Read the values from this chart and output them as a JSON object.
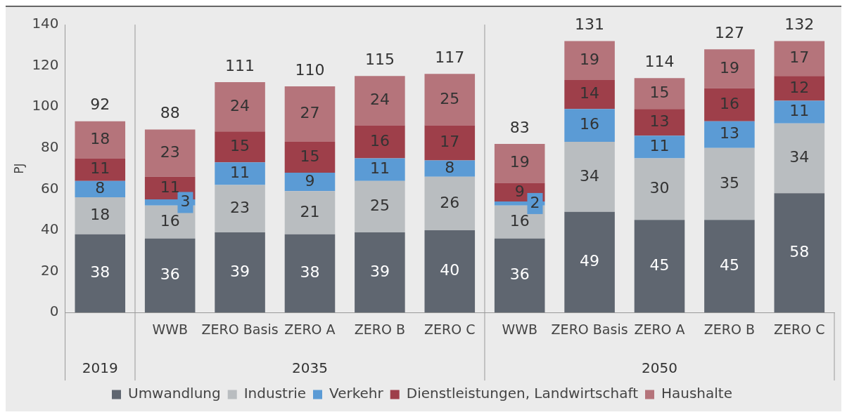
{
  "chart_data": {
    "type": "bar",
    "stacked": true,
    "ylabel": "PJ",
    "ylim": [
      0,
      140
    ],
    "yticks": [
      0,
      20,
      40,
      60,
      80,
      100,
      120,
      140
    ],
    "grid": false,
    "legend": "bottom",
    "data_labels": true,
    "categories": [
      null,
      "WWB",
      "ZERO Basis",
      "ZERO A",
      "ZERO B",
      "ZERO C",
      "WWB",
      "ZERO Basis",
      "ZERO A",
      "ZERO B",
      "ZERO C"
    ],
    "series": [
      {
        "name": "Umwandlung",
        "color": "#5f6670",
        "values": [
          38,
          36,
          39,
          38,
          39,
          40,
          36,
          49,
          45,
          45,
          58
        ]
      },
      {
        "name": "Industrie",
        "color": "#b9bdc0",
        "values": [
          18,
          16,
          23,
          21,
          25,
          26,
          16,
          34,
          30,
          35,
          34
        ]
      },
      {
        "name": "Verkehr",
        "color": "#5b9bd5",
        "values": [
          8,
          3,
          11,
          9,
          11,
          8,
          2,
          16,
          11,
          13,
          11
        ]
      },
      {
        "name": "Dienstleistungen, Landwirtschaft",
        "color": "#9e3f4a",
        "values": [
          11,
          11,
          15,
          15,
          16,
          17,
          9,
          14,
          13,
          16,
          12
        ]
      },
      {
        "name": "Haushalte",
        "color": "#b5747b",
        "values": [
          18,
          23,
          24,
          27,
          24,
          25,
          19,
          19,
          15,
          19,
          17
        ]
      }
    ],
    "totals": [
      "92",
      "88",
      "111",
      "110",
      "115",
      "117",
      "83",
      "131",
      "114",
      "127",
      "132"
    ],
    "annotations": [
      "2019",
      "2035",
      "2050"
    ]
  }
}
